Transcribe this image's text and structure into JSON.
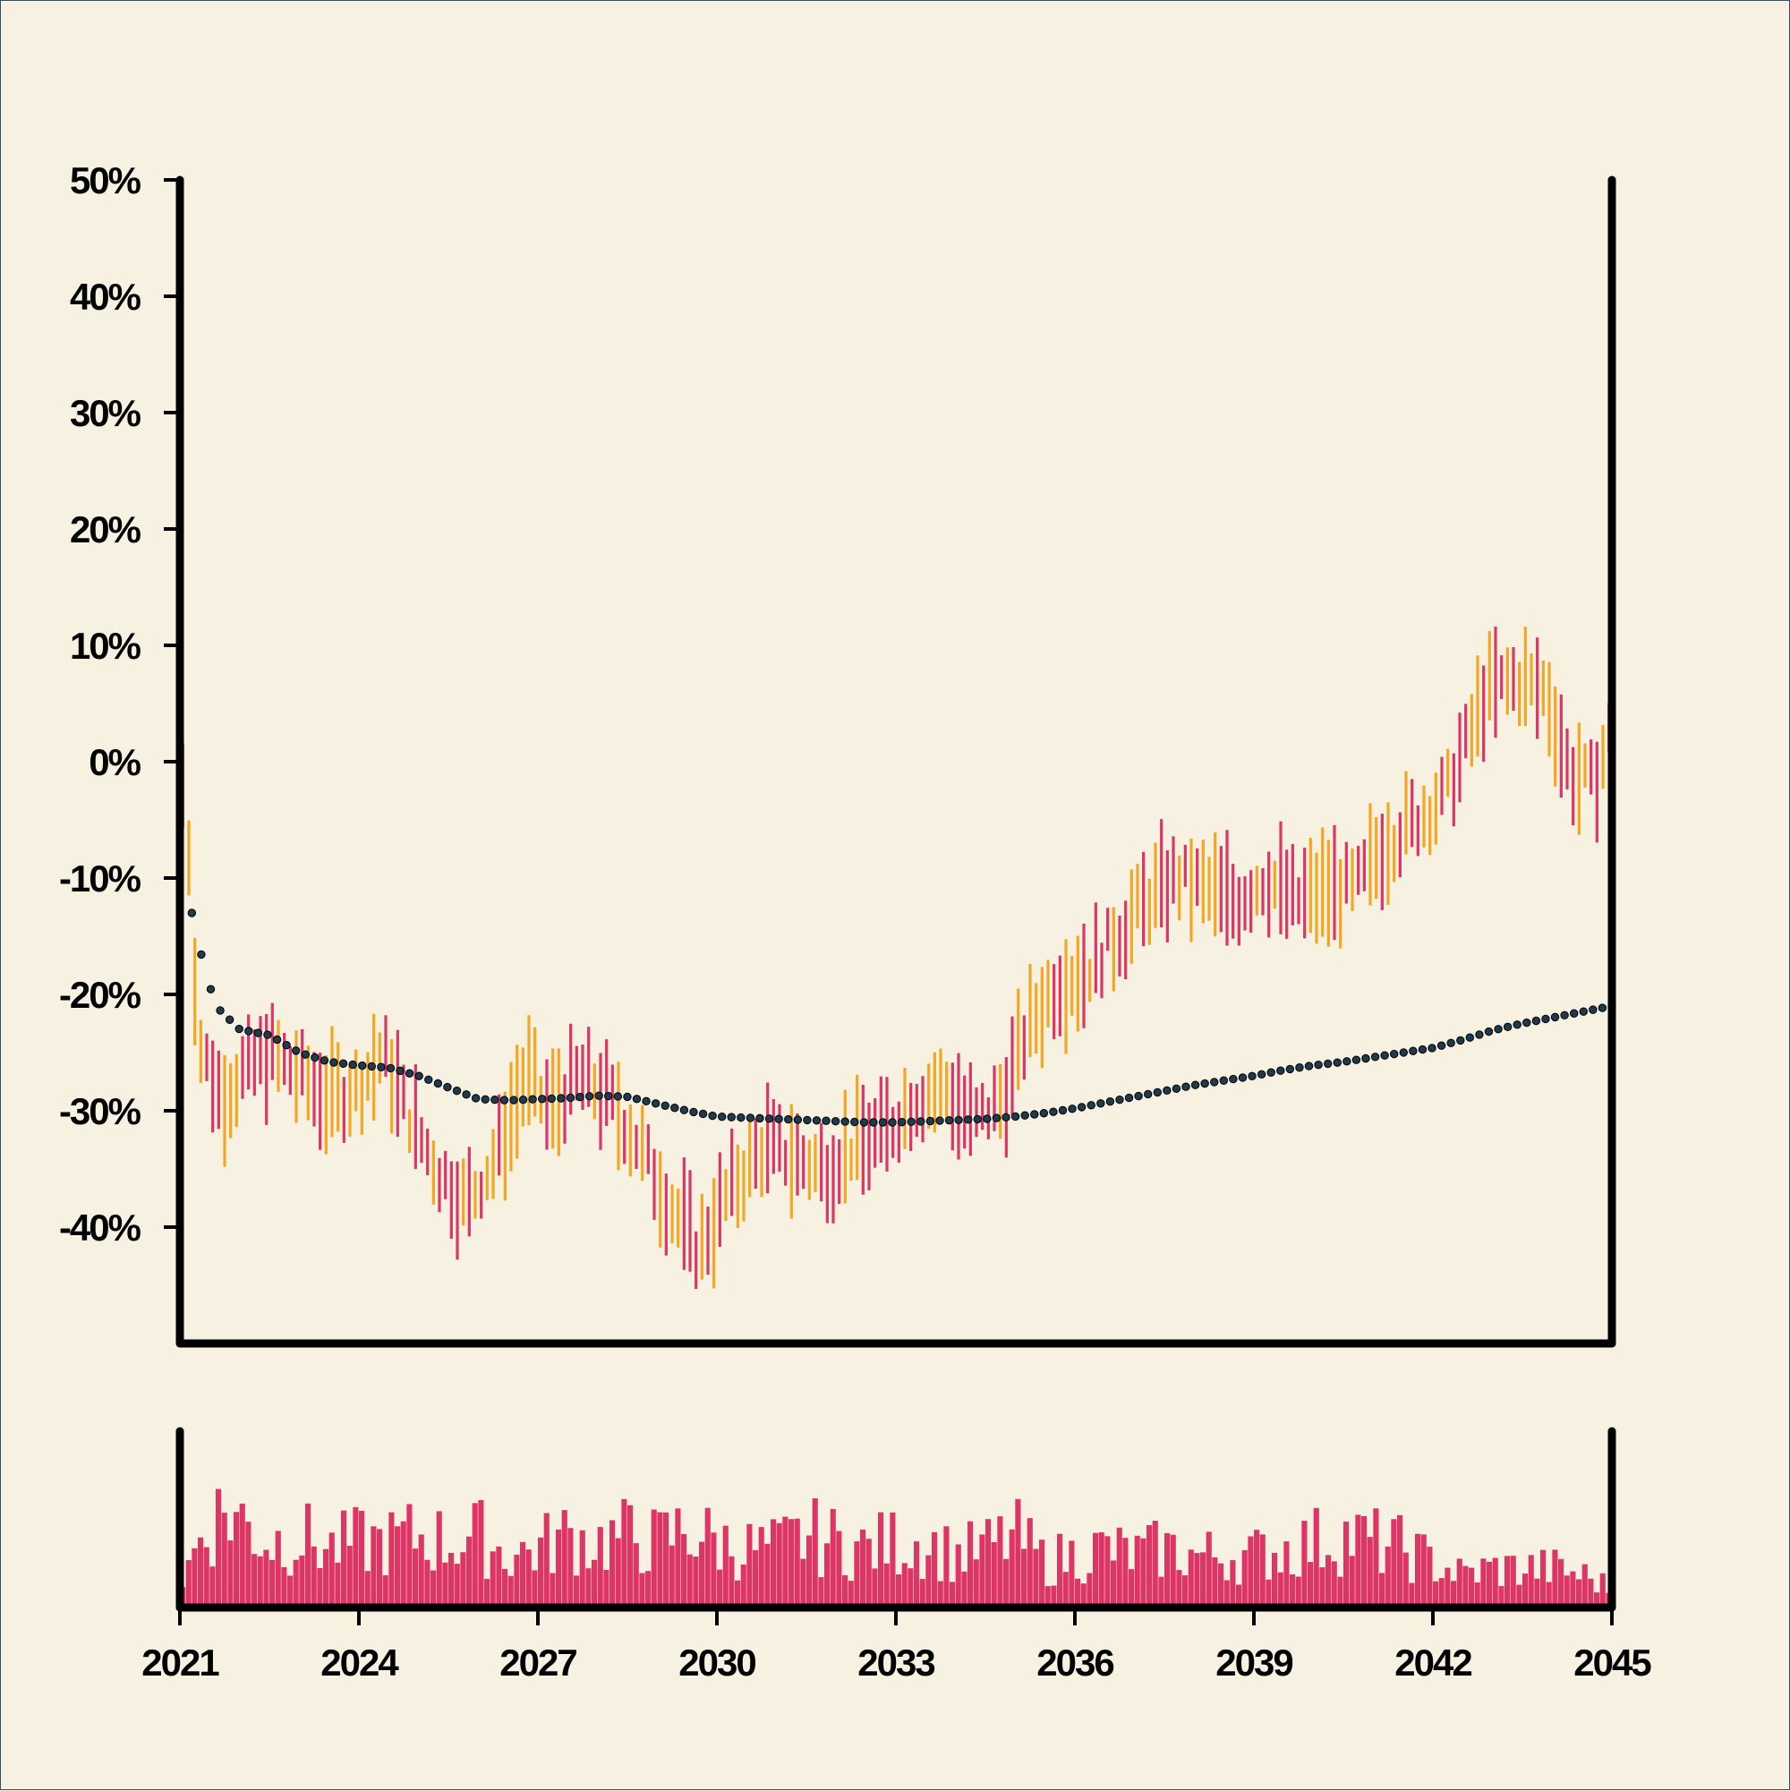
{
  "chart_data": {
    "type": "ohlc",
    "title": "",
    "xlabel": "",
    "ylabel": "",
    "x_range": [
      2021.0,
      2045.0
    ],
    "ylim": [
      -50,
      50
    ],
    "y_ticks": [
      {
        "value": 50,
        "label": "50%"
      },
      {
        "value": 40,
        "label": "40%"
      },
      {
        "value": 30,
        "label": "30%"
      },
      {
        "value": 20,
        "label": "20%"
      },
      {
        "value": 10,
        "label": "10%"
      },
      {
        "value": 0,
        "label": "0%"
      },
      {
        "value": -10,
        "label": "-10%"
      },
      {
        "value": -20,
        "label": "-20%"
      },
      {
        "value": -30,
        "label": "-30%"
      },
      {
        "value": -40,
        "label": "-40%"
      }
    ],
    "x_ticks": [
      {
        "value": 2021,
        "label": "2021"
      },
      {
        "value": 2024,
        "label": "2024"
      },
      {
        "value": 2027,
        "label": "2027"
      },
      {
        "value": 2030,
        "label": "2030"
      },
      {
        "value": 2033,
        "label": "2033"
      },
      {
        "value": 2036,
        "label": "2036"
      },
      {
        "value": 2039,
        "label": "2039"
      },
      {
        "value": 2042,
        "label": "2042"
      },
      {
        "value": 2045,
        "label": "2045"
      }
    ],
    "colors": {
      "up": "#f5a623",
      "down": "#dc3566",
      "moving_average": "#2f4f63",
      "volume": "#dc3566",
      "axis": "#000000"
    },
    "price_anchors": [
      [
        2021.1,
        -2
      ],
      [
        2021.3,
        -24
      ],
      [
        2021.7,
        -29
      ],
      [
        2022.0,
        -27
      ],
      [
        2022.5,
        -25
      ],
      [
        2023.0,
        -27
      ],
      [
        2023.5,
        -29
      ],
      [
        2024.0,
        -28
      ],
      [
        2024.4,
        -25
      ],
      [
        2024.8,
        -30
      ],
      [
        2025.3,
        -35
      ],
      [
        2025.8,
        -38
      ],
      [
        2026.3,
        -34
      ],
      [
        2026.8,
        -27
      ],
      [
        2027.2,
        -30
      ],
      [
        2027.7,
        -27
      ],
      [
        2028.2,
        -29
      ],
      [
        2028.7,
        -33
      ],
      [
        2029.2,
        -38
      ],
      [
        2029.7,
        -42
      ],
      [
        2030.2,
        -37
      ],
      [
        2030.8,
        -33
      ],
      [
        2031.3,
        -34
      ],
      [
        2031.8,
        -35
      ],
      [
        2032.3,
        -33
      ],
      [
        2032.8,
        -32
      ],
      [
        2033.3,
        -29
      ],
      [
        2033.8,
        -28
      ],
      [
        2034.3,
        -31
      ],
      [
        2034.8,
        -29
      ],
      [
        2035.2,
        -23
      ],
      [
        2035.7,
        -19
      ],
      [
        2036.2,
        -18
      ],
      [
        2036.7,
        -15
      ],
      [
        2037.2,
        -12
      ],
      [
        2037.7,
        -10
      ],
      [
        2038.2,
        -11
      ],
      [
        2038.7,
        -12
      ],
      [
        2039.2,
        -10
      ],
      [
        2039.7,
        -12
      ],
      [
        2040.2,
        -11
      ],
      [
        2040.7,
        -11
      ],
      [
        2041.2,
        -7
      ],
      [
        2041.7,
        -5
      ],
      [
        2042.2,
        -3
      ],
      [
        2042.6,
        2
      ],
      [
        2042.9,
        6
      ],
      [
        2043.4,
        7
      ],
      [
        2043.9,
        6
      ],
      [
        2044.3,
        -1
      ],
      [
        2044.7,
        -2
      ],
      [
        2045.0,
        3
      ]
    ],
    "moving_average": [
      [
        2021.2,
        -13
      ],
      [
        2021.4,
        -17.5
      ],
      [
        2021.6,
        -21
      ],
      [
        2022.0,
        -23
      ],
      [
        2022.5,
        -23.5
      ],
      [
        2023.0,
        -25
      ],
      [
        2023.5,
        -25.8
      ],
      [
        2024.0,
        -26.1
      ],
      [
        2024.5,
        -26.3
      ],
      [
        2025.0,
        -27
      ],
      [
        2025.5,
        -28
      ],
      [
        2026.0,
        -29
      ],
      [
        2026.5,
        -29.1
      ],
      [
        2027.0,
        -29
      ],
      [
        2027.5,
        -28.9
      ],
      [
        2028.0,
        -28.7
      ],
      [
        2028.5,
        -28.8
      ],
      [
        2029.0,
        -29.4
      ],
      [
        2029.5,
        -30
      ],
      [
        2030.0,
        -30.5
      ],
      [
        2030.5,
        -30.6
      ],
      [
        2031.0,
        -30.7
      ],
      [
        2031.5,
        -30.8
      ],
      [
        2032.0,
        -30.9
      ],
      [
        2032.5,
        -31
      ],
      [
        2033.0,
        -31
      ],
      [
        2033.5,
        -30.9
      ],
      [
        2034.0,
        -30.8
      ],
      [
        2034.5,
        -30.7
      ],
      [
        2035.0,
        -30.5
      ],
      [
        2035.5,
        -30.2
      ],
      [
        2036.0,
        -29.8
      ],
      [
        2036.5,
        -29.3
      ],
      [
        2037.0,
        -28.8
      ],
      [
        2037.5,
        -28.3
      ],
      [
        2038.0,
        -27.8
      ],
      [
        2038.5,
        -27.4
      ],
      [
        2039.0,
        -27
      ],
      [
        2039.5,
        -26.5
      ],
      [
        2040.0,
        -26.1
      ],
      [
        2040.5,
        -25.8
      ],
      [
        2041.0,
        -25.4
      ],
      [
        2041.5,
        -25
      ],
      [
        2042.0,
        -24.6
      ],
      [
        2042.5,
        -23.9
      ],
      [
        2043.0,
        -23.1
      ],
      [
        2043.5,
        -22.5
      ],
      [
        2044.0,
        -22
      ],
      [
        2044.5,
        -21.5
      ],
      [
        2045.0,
        -21
      ]
    ],
    "volume_profile": [
      [
        2021.0,
        0.15
      ],
      [
        2021.4,
        0.6
      ],
      [
        2021.8,
        0.75
      ],
      [
        2022.5,
        0.5
      ],
      [
        2023.0,
        0.55
      ],
      [
        2023.5,
        0.45
      ],
      [
        2024.0,
        0.5
      ],
      [
        2024.5,
        0.5
      ],
      [
        2025.0,
        0.55
      ],
      [
        2025.5,
        0.5
      ],
      [
        2026.0,
        0.55
      ],
      [
        2026.5,
        0.4
      ],
      [
        2027.0,
        0.45
      ],
      [
        2027.5,
        0.55
      ],
      [
        2028.0,
        0.5
      ],
      [
        2028.5,
        0.55
      ],
      [
        2029.0,
        0.5
      ],
      [
        2029.5,
        0.6
      ],
      [
        2030.0,
        0.5
      ],
      [
        2030.5,
        0.45
      ],
      [
        2031.0,
        0.45
      ],
      [
        2031.5,
        0.55
      ],
      [
        2032.0,
        0.5
      ],
      [
        2032.5,
        0.45
      ],
      [
        2033.0,
        0.5
      ],
      [
        2033.5,
        0.5
      ],
      [
        2034.0,
        0.4
      ],
      [
        2034.5,
        0.45
      ],
      [
        2035.0,
        0.55
      ],
      [
        2035.5,
        0.35
      ],
      [
        2036.0,
        0.4
      ],
      [
        2036.5,
        0.45
      ],
      [
        2037.0,
        0.4
      ],
      [
        2037.5,
        0.45
      ],
      [
        2038.0,
        0.4
      ],
      [
        2038.5,
        0.4
      ],
      [
        2039.0,
        0.4
      ],
      [
        2039.5,
        0.45
      ],
      [
        2040.0,
        0.5
      ],
      [
        2040.5,
        0.55
      ],
      [
        2041.0,
        0.5
      ],
      [
        2041.5,
        0.45
      ],
      [
        2042.0,
        0.35
      ],
      [
        2042.5,
        0.25
      ],
      [
        2043.0,
        0.3
      ],
      [
        2043.5,
        0.3
      ],
      [
        2044.0,
        0.3
      ],
      [
        2044.5,
        0.25
      ],
      [
        2045.0,
        0.15
      ]
    ],
    "bar_count": 240,
    "volume_bar_count": 240
  }
}
